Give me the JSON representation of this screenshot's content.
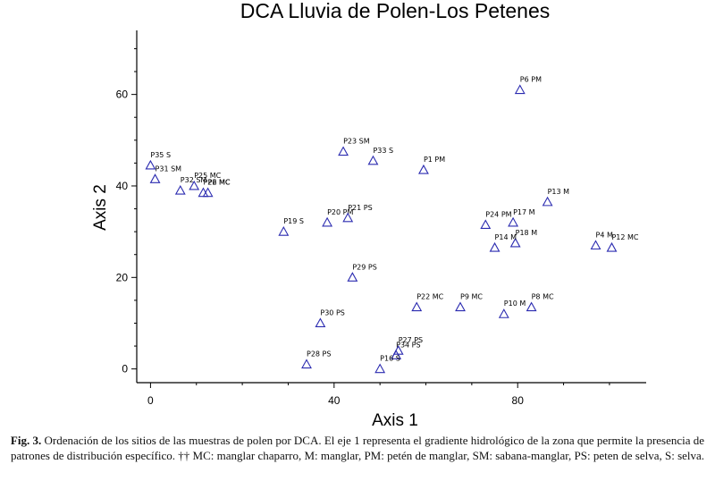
{
  "chart_data": {
    "type": "scatter",
    "title": "DCA Lluvia de Polen-Los Petenes",
    "xlabel": "Axis 1",
    "ylabel": "Axis 2",
    "xlim": [
      -3,
      108
    ],
    "ylim": [
      -3,
      74
    ],
    "xticks": [
      0,
      40,
      80
    ],
    "yticks": [
      0,
      20,
      40,
      60
    ],
    "grid": false,
    "marker": "triangle-open",
    "marker_color": "#2b2bb0",
    "points": [
      {
        "label": "P35 S",
        "x": 0,
        "y": 44.5
      },
      {
        "label": "P31 SM",
        "x": 1,
        "y": 41.5
      },
      {
        "label": "P32 SM",
        "x": 6.5,
        "y": 39
      },
      {
        "label": "P25 MC",
        "x": 9.5,
        "y": 40
      },
      {
        "label": "P26 MC",
        "x": 11.5,
        "y": 38.5
      },
      {
        "label": "P2 MC",
        "x": 12.5,
        "y": 38.5
      },
      {
        "label": "P23 SM",
        "x": 42,
        "y": 47.5
      },
      {
        "label": "P33 S",
        "x": 48.5,
        "y": 45.5
      },
      {
        "label": "P1 PM",
        "x": 59.5,
        "y": 43.5
      },
      {
        "label": "P6 PM",
        "x": 80.5,
        "y": 61
      },
      {
        "label": "P13 M",
        "x": 86.5,
        "y": 36.5
      },
      {
        "label": "P24 PM",
        "x": 73,
        "y": 31.5
      },
      {
        "label": "P17 M",
        "x": 79,
        "y": 32
      },
      {
        "label": "P18 M",
        "x": 79.5,
        "y": 27.5
      },
      {
        "label": "P14 M",
        "x": 75,
        "y": 26.5
      },
      {
        "label": "P4 M",
        "x": 97,
        "y": 27
      },
      {
        "label": "P12 MC",
        "x": 100.5,
        "y": 26.5
      },
      {
        "label": "P19 S",
        "x": 29,
        "y": 30
      },
      {
        "label": "P20 PM",
        "x": 38.5,
        "y": 32
      },
      {
        "label": "P21 PS",
        "x": 43,
        "y": 33
      },
      {
        "label": "P29 PS",
        "x": 44,
        "y": 20
      },
      {
        "label": "P22 MC",
        "x": 58,
        "y": 13.5
      },
      {
        "label": "P9 MC",
        "x": 67.5,
        "y": 13.5
      },
      {
        "label": "P10 M",
        "x": 77,
        "y": 12
      },
      {
        "label": "P8 MC",
        "x": 83,
        "y": 13.5
      },
      {
        "label": "P30 PS",
        "x": 37,
        "y": 10
      },
      {
        "label": "P27 PS",
        "x": 54,
        "y": 4
      },
      {
        "label": "P34 PS",
        "x": 53.5,
        "y": 3
      },
      {
        "label": "P16 S",
        "x": 50,
        "y": 0
      },
      {
        "label": "P28 PS",
        "x": 34,
        "y": 1
      }
    ]
  },
  "caption": {
    "label": "Fig. 3.",
    "text": "Ordenación de los sitios de las muestras de polen por DCA. El eje 1 representa el gradiente hidrológico de la zona que permite la presencia de patrones de distribución específico. †† MC: manglar chaparro, M: manglar, PM: petén de manglar, SM: sabana-manglar, PS: peten de selva, S: selva."
  }
}
